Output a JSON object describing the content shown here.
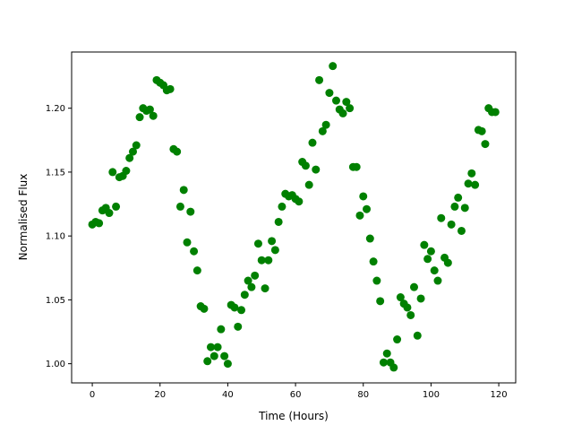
{
  "chart_data": {
    "type": "scatter",
    "title": "",
    "xlabel": "Time (Hours)",
    "ylabel": "Normalised Flux",
    "xlim": [
      -6.1,
      125.0
    ],
    "ylim": [
      0.985,
      1.244
    ],
    "xticks": [
      0,
      20,
      40,
      60,
      80,
      100,
      120
    ],
    "xtick_labels": [
      "0",
      "20",
      "40",
      "60",
      "80",
      "100",
      "120"
    ],
    "yticks": [
      1.0,
      1.05,
      1.1,
      1.15,
      1.2
    ],
    "ytick_labels": [
      "1.00",
      "1.05",
      "1.10",
      "1.15",
      "1.20"
    ],
    "grid": false,
    "marker_color": "#008000",
    "series": [
      {
        "x": [
          0,
          1,
          2,
          3,
          4,
          5,
          6,
          7,
          8,
          9,
          10,
          11,
          12,
          13,
          14,
          15,
          16,
          17,
          18,
          19,
          20,
          21,
          22,
          23,
          24,
          25,
          26,
          27,
          28,
          29,
          30,
          31,
          32,
          33,
          34,
          35,
          36,
          37,
          38,
          39,
          40,
          41,
          42,
          43,
          44,
          45,
          46,
          47,
          48,
          49,
          50,
          51,
          52,
          53,
          54,
          55,
          56,
          57,
          58,
          59,
          60,
          61,
          62,
          63,
          64,
          65,
          66,
          67,
          68,
          69,
          70,
          71,
          72,
          73,
          74,
          75,
          76,
          77,
          78,
          79,
          80,
          81,
          82,
          83,
          84,
          85,
          86,
          87,
          88,
          89,
          90,
          91,
          92,
          93,
          94,
          95,
          96,
          97,
          98,
          99,
          100,
          101,
          102,
          103,
          104,
          105,
          106,
          107,
          108,
          109,
          110,
          111,
          112,
          113,
          114,
          115,
          116,
          117,
          118,
          119
        ],
        "y": [
          1.109,
          1.111,
          1.11,
          1.12,
          1.122,
          1.118,
          1.15,
          1.123,
          1.146,
          1.147,
          1.151,
          1.161,
          1.166,
          1.171,
          1.193,
          1.2,
          1.198,
          1.199,
          1.194,
          1.222,
          1.22,
          1.218,
          1.214,
          1.215,
          1.168,
          1.166,
          1.123,
          1.136,
          1.095,
          1.119,
          1.088,
          1.073,
          1.045,
          1.043,
          1.002,
          1.013,
          1.006,
          1.013,
          1.027,
          1.006,
          1.0,
          1.046,
          1.044,
          1.029,
          1.042,
          1.054,
          1.065,
          1.06,
          1.069,
          1.094,
          1.081,
          1.059,
          1.081,
          1.096,
          1.089,
          1.111,
          1.123,
          1.133,
          1.131,
          1.132,
          1.129,
          1.127,
          1.158,
          1.155,
          1.14,
          1.173,
          1.152,
          1.222,
          1.182,
          1.187,
          1.212,
          1.233,
          1.206,
          1.199,
          1.196,
          1.205,
          1.2,
          1.154,
          1.154,
          1.116,
          1.131,
          1.121,
          1.098,
          1.08,
          1.065,
          1.049,
          1.001,
          1.008,
          1.001,
          0.997,
          1.019,
          1.052,
          1.047,
          1.044,
          1.038,
          1.06,
          1.022,
          1.051,
          1.093,
          1.082,
          1.088,
          1.073,
          1.065,
          1.114,
          1.083,
          1.079,
          1.109,
          1.123,
          1.13,
          1.104,
          1.122,
          1.141,
          1.149,
          1.14,
          1.183,
          1.182,
          1.172,
          1.2,
          1.197,
          1.197
        ]
      }
    ]
  }
}
